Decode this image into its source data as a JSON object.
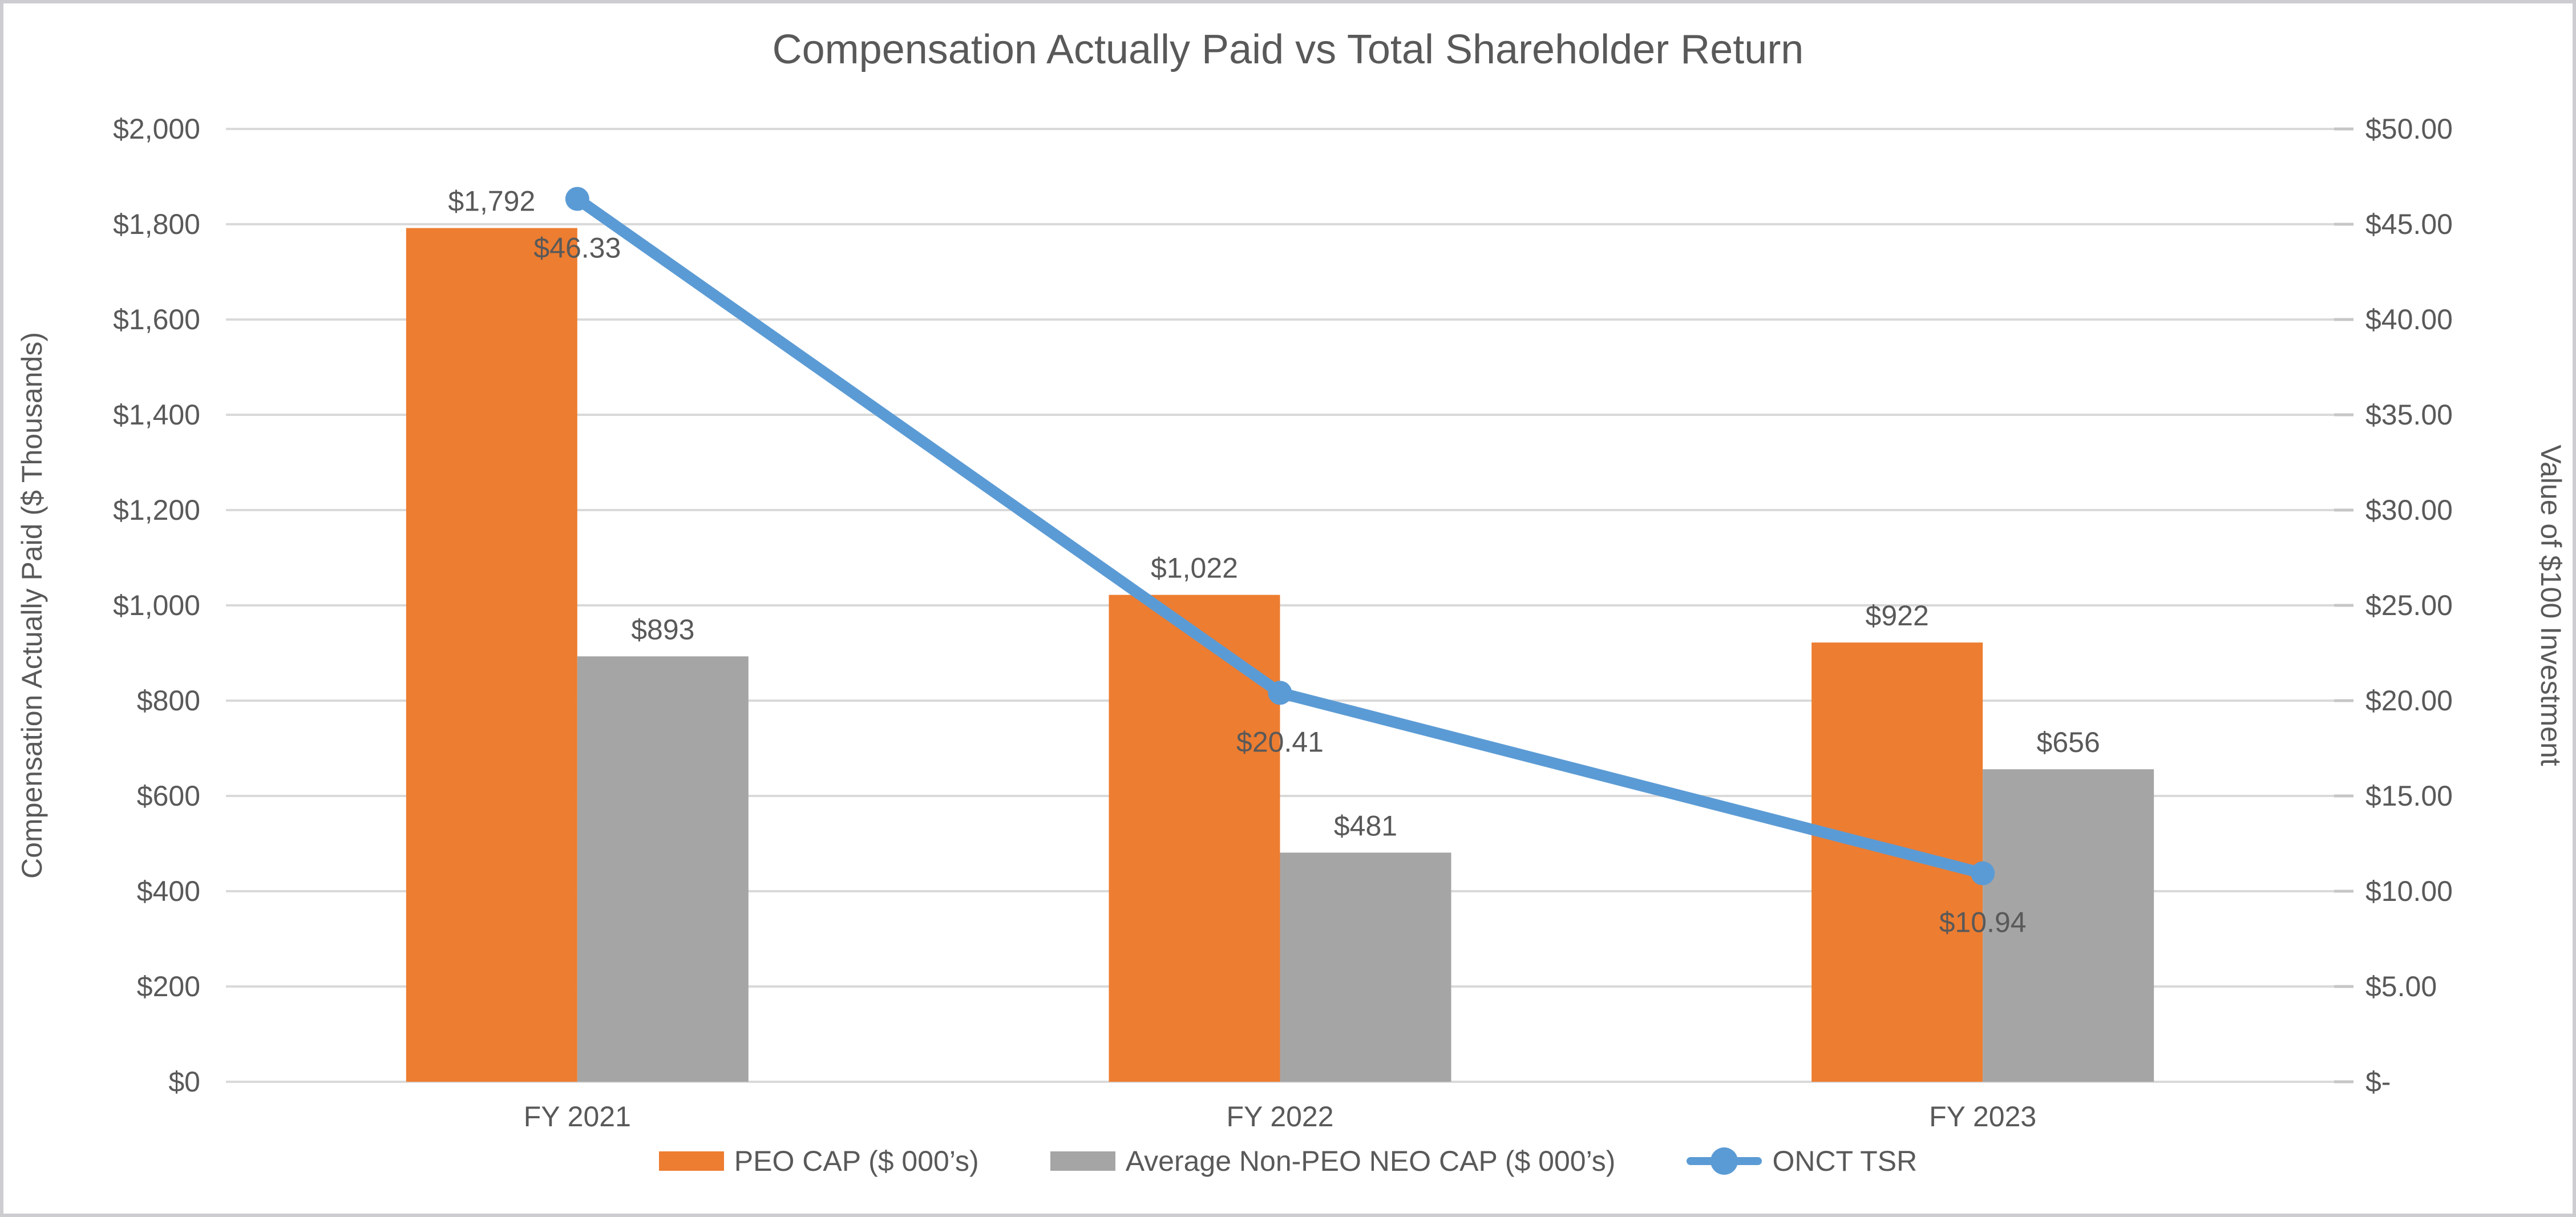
{
  "chart_data": {
    "type": "combo",
    "title": "Compensation Actually Paid vs Total Shareholder Return",
    "categories": [
      "FY 2021",
      "FY 2022",
      "FY 2023"
    ],
    "series": [
      {
        "name": "PEO CAP ($ 000’s)",
        "type": "bar",
        "axis": "left",
        "color": "#ED7D31",
        "values": [
          1792,
          1022,
          922
        ],
        "labels": [
          "$1,792",
          "$1,022",
          "$922"
        ]
      },
      {
        "name": "Average Non-PEO NEO CAP ($ 000’s)",
        "type": "bar",
        "axis": "left",
        "color": "#A5A5A5",
        "values": [
          893,
          481,
          656
        ],
        "labels": [
          "$893",
          "$481",
          "$656"
        ]
      },
      {
        "name": "ONCT TSR",
        "type": "line",
        "axis": "right",
        "color": "#5B9BD5",
        "values": [
          46.33,
          20.41,
          10.94
        ],
        "labels": [
          "$46.33",
          "$20.41",
          "$10.94"
        ]
      }
    ],
    "left_axis": {
      "title": "Compensation Actually Paid ($ Thousands)",
      "min": 0,
      "max": 2000,
      "step": 200,
      "tick_labels": [
        "$0",
        "$200",
        "$400",
        "$600",
        "$800",
        "$1,000",
        "$1,200",
        "$1,400",
        "$1,600",
        "$1,800",
        "$2,000"
      ]
    },
    "right_axis": {
      "title": "Value of $100 Investment",
      "min": 0,
      "max": 50,
      "step": 5,
      "tick_labels": [
        "$-",
        "$5.00",
        "$10.00",
        "$15.00",
        "$20.00",
        "$25.00",
        "$30.00",
        "$35.00",
        "$40.00",
        "$45.00",
        "$50.00"
      ]
    },
    "legend_position": "bottom",
    "grid": true,
    "colors": {
      "text": "#595959",
      "gridline": "#D9D9D9",
      "tick_mark": "#C6C6C6",
      "frame_border": "#CDCDD1",
      "background": "#FFFFFF"
    }
  }
}
